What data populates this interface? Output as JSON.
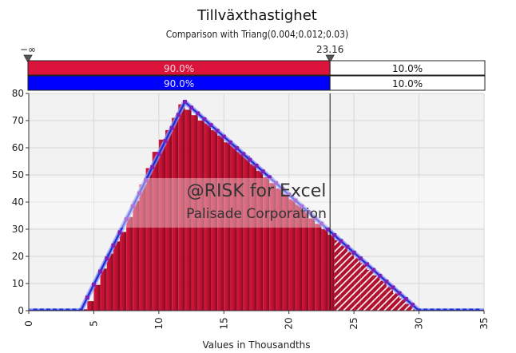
{
  "chart_data": {
    "type": "bar",
    "title": "Tillväxthastighet",
    "subtitle": "Comparison with Triang(0.004;0.012;0.03)",
    "xlabel": "Values in Thousandths",
    "ylabel": "",
    "xlim": [
      0,
      35
    ],
    "ylim": [
      0,
      80
    ],
    "x_ticks": [
      "0",
      "5",
      "10",
      "15",
      "20",
      "25",
      "30",
      "35"
    ],
    "y_ticks": [
      "0",
      "10",
      "20",
      "30",
      "40",
      "50",
      "60",
      "70",
      "80"
    ],
    "grid": true,
    "bin_width": 0.5,
    "bins": [
      {
        "x": 4.0,
        "y": 0.5
      },
      {
        "x": 4.5,
        "y": 3.5
      },
      {
        "x": 5.0,
        "y": 9.5
      },
      {
        "x": 5.5,
        "y": 15.5
      },
      {
        "x": 6.0,
        "y": 21
      },
      {
        "x": 6.5,
        "y": 25.5
      },
      {
        "x": 7.0,
        "y": 29
      },
      {
        "x": 7.5,
        "y": 34.5
      },
      {
        "x": 8.0,
        "y": 40.5
      },
      {
        "x": 8.5,
        "y": 46.5
      },
      {
        "x": 9.0,
        "y": 52.5
      },
      {
        "x": 9.5,
        "y": 58.5
      },
      {
        "x": 10.0,
        "y": 63
      },
      {
        "x": 10.5,
        "y": 66.5
      },
      {
        "x": 11.0,
        "y": 71
      },
      {
        "x": 11.5,
        "y": 76
      },
      {
        "x": 12.0,
        "y": 74
      },
      {
        "x": 12.5,
        "y": 72
      },
      {
        "x": 13.0,
        "y": 70
      },
      {
        "x": 13.5,
        "y": 69
      },
      {
        "x": 14.0,
        "y": 66.5
      },
      {
        "x": 14.5,
        "y": 64.5
      },
      {
        "x": 15.0,
        "y": 62
      },
      {
        "x": 15.5,
        "y": 61
      },
      {
        "x": 16.0,
        "y": 58.5
      },
      {
        "x": 16.5,
        "y": 57
      },
      {
        "x": 17.0,
        "y": 54
      },
      {
        "x": 17.5,
        "y": 51.5
      },
      {
        "x": 18.0,
        "y": 49
      },
      {
        "x": 18.5,
        "y": 47
      },
      {
        "x": 19.0,
        "y": 45
      },
      {
        "x": 19.5,
        "y": 43
      },
      {
        "x": 20.0,
        "y": 41
      },
      {
        "x": 20.5,
        "y": 39
      },
      {
        "x": 21.0,
        "y": 36.5
      },
      {
        "x": 21.5,
        "y": 34
      },
      {
        "x": 22.0,
        "y": 32
      },
      {
        "x": 22.5,
        "y": 30
      },
      {
        "x": 23.0,
        "y": 28
      },
      {
        "x": 23.5,
        "y": 26
      },
      {
        "x": 24.0,
        "y": 24
      },
      {
        "x": 24.5,
        "y": 22
      },
      {
        "x": 25.0,
        "y": 19.5
      },
      {
        "x": 25.5,
        "y": 17.5
      },
      {
        "x": 26.0,
        "y": 15
      },
      {
        "x": 26.5,
        "y": 13
      },
      {
        "x": 27.0,
        "y": 11
      },
      {
        "x": 27.5,
        "y": 9
      },
      {
        "x": 28.0,
        "y": 6.5
      },
      {
        "x": 28.5,
        "y": 4.5
      },
      {
        "x": 29.0,
        "y": 2.5
      },
      {
        "x": 29.5,
        "y": 0.5
      }
    ],
    "theoretical_curve": {
      "name": "Triang(0.004;0.012;0.03)",
      "points": [
        [
          0,
          0
        ],
        [
          4,
          0
        ],
        [
          12,
          76.9
        ],
        [
          30,
          0
        ],
        [
          35,
          0
        ]
      ]
    },
    "delimiter": {
      "left_label": "−∞",
      "right_value": 23.16,
      "right_label": "23.16"
    },
    "probability_bars": [
      {
        "left": "90.0%",
        "right": "10.0%",
        "color": "#dc143c"
      },
      {
        "left": "90.0%",
        "right": "10.0%",
        "color": "#0000ff"
      }
    ],
    "watermark": {
      "line1": "@RISK for Excel",
      "line2": "Palisade Corporation"
    },
    "colors": {
      "bars": "#b0102e",
      "bars_highlight": "#dc143c",
      "curve": "#1f2fd6",
      "curve_light": "#8a92f5",
      "marker": "#7a1fb8"
    }
  }
}
